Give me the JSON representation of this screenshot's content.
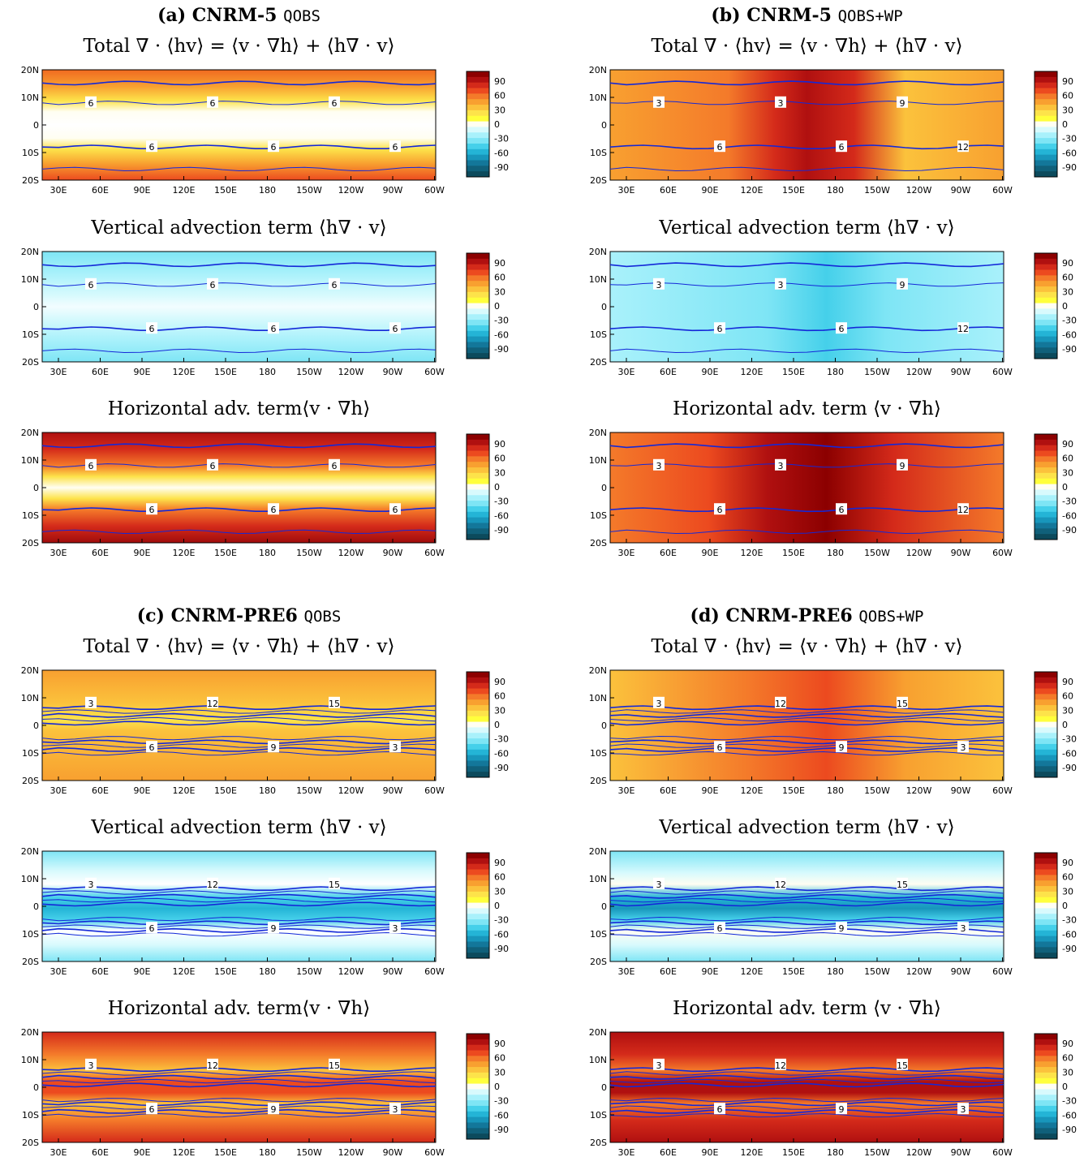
{
  "figure": {
    "x_ticks": [
      "30E",
      "60E",
      "90E",
      "120E",
      "150E",
      "180",
      "150W",
      "120W",
      "90W",
      "60W"
    ],
    "y_ticks": [
      "20N",
      "10N",
      "0",
      "10S",
      "20S"
    ],
    "colorbar_labels": [
      "90",
      "60",
      "30",
      "0",
      "-30",
      "-60",
      "-90"
    ],
    "colorbar_colors": [
      "#8c0000",
      "#b01010",
      "#d42a1a",
      "#ec4a1f",
      "#f47a2a",
      "#f8a030",
      "#fbc23c",
      "#fde34a",
      "#ffff3c",
      "#fffef2",
      "#d8fafd",
      "#a9f1fb",
      "#7ee5f5",
      "#45d0ea",
      "#24b4d6",
      "#1896bb",
      "#13779a",
      "#10607a",
      "#0c4a5c"
    ],
    "contour_color": "#1428d8"
  },
  "panels": [
    {
      "id": "a",
      "title_prefix": "(a) CNRM-5",
      "title_suffix": "QOBS",
      "subplots": [
        {
          "title": "Total ∇ · ⟨hv⟩ = ⟨v · ∇h⟩ + ⟨h∇ · v⟩",
          "field_type": "total"
        },
        {
          "title": "Vertical advection term ⟨h∇ · v⟩",
          "field_type": "vertical"
        },
        {
          "title": "Horizontal adv. term⟨v · ∇h⟩",
          "field_type": "horizontal"
        }
      ],
      "contour_labels": [
        "6",
        "6",
        "6",
        "6",
        "6",
        "6",
        "6",
        "6"
      ]
    },
    {
      "id": "b",
      "title_prefix": "(b) CNRM-5",
      "title_suffix": "QOBS+WP",
      "subplots": [
        {
          "title": "Total ∇ · ⟨hv⟩ = ⟨v · ∇h⟩ + ⟨h∇ · v⟩",
          "field_type": "total"
        },
        {
          "title": "Vertical advection term ⟨h∇ · v⟩",
          "field_type": "vertical"
        },
        {
          "title": "Horizontal adv. term ⟨v · ∇h⟩",
          "field_type": "horizontal"
        }
      ],
      "contour_labels": [
        "3",
        "6",
        "3",
        "6",
        "9",
        "12",
        "6",
        "3",
        "6",
        "6",
        "9",
        "6",
        "3"
      ]
    },
    {
      "id": "c",
      "title_prefix": "(c) CNRM-PRE6",
      "title_suffix": "QOBS",
      "subplots": [
        {
          "title": "Total ∇ · ⟨hv⟩ = ⟨v · ∇h⟩ + ⟨h∇ · v⟩",
          "field_type": "total"
        },
        {
          "title": "Vertical advection term ⟨h∇ · v⟩",
          "field_type": "vertical"
        },
        {
          "title": "Horizontal adv. term⟨v · ∇h⟩",
          "field_type": "horizontal"
        }
      ],
      "contour_labels": [
        "3",
        "6",
        "12",
        "9",
        "15",
        "3",
        "6",
        "12",
        "15",
        "15",
        "12",
        "6",
        "3",
        "15",
        "12",
        "6",
        "3"
      ]
    },
    {
      "id": "d",
      "title_prefix": "(d) CNRM-PRE6",
      "title_suffix": "QOBS+WP",
      "subplots": [
        {
          "title": "Total ∇ · ⟨hv⟩ = ⟨v · ∇h⟩ + ⟨h∇ · v⟩",
          "field_type": "total"
        },
        {
          "title": "Vertical advection term ⟨h∇ · v⟩",
          "field_type": "vertical"
        },
        {
          "title": "Horizontal adv. term ⟨v · ∇h⟩",
          "field_type": "horizontal"
        }
      ],
      "contour_labels": [
        "3",
        "6",
        "12",
        "9",
        "15",
        "3",
        "6",
        "12",
        "15",
        "15",
        "9",
        "12",
        "6",
        "3",
        "15",
        "12",
        "9",
        "3",
        "6"
      ]
    }
  ],
  "chart_data": {
    "type": "heatmap",
    "x_ticks": [
      "30E",
      "60E",
      "90E",
      "120E",
      "150E",
      "180",
      "150W",
      "120W",
      "90W",
      "60W"
    ],
    "y_ticks": [
      "20N",
      "10N",
      "0",
      "10S",
      "20S"
    ],
    "colorbar_ticks": [
      90,
      60,
      30,
      0,
      -30,
      -60,
      -90
    ],
    "panels": [
      "(a) CNRM-5 QOBS",
      "(b) CNRM-5 QOBS+WP",
      "(c) CNRM-PRE6 QOBS",
      "(d) CNRM-PRE6 QOBS+WP"
    ],
    "contour_levels": [
      3,
      6,
      9,
      12,
      15
    ]
  }
}
